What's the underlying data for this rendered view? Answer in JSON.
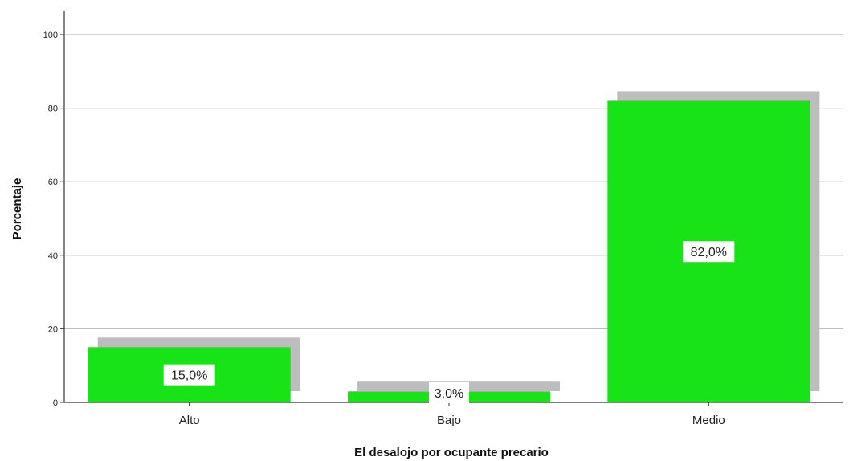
{
  "chart_data": {
    "type": "bar",
    "categories": [
      "Alto",
      "Bajo",
      "Medio"
    ],
    "values": [
      15.0,
      3.0,
      82.0
    ],
    "data_labels": [
      "15,0%",
      "3,0%",
      "82,0%"
    ],
    "xlabel": "El desalojo por ocupante precario",
    "ylabel": "Porcentaje",
    "ylim": [
      0,
      105
    ],
    "yticks": [
      0,
      20,
      40,
      60,
      80,
      100
    ],
    "grid": true,
    "bar_style": "3d-shadow",
    "colors": {
      "bar": "#17e317",
      "shadow": "#bdbdbd",
      "grid": "#bdbdbd",
      "axis": "#333333"
    }
  }
}
